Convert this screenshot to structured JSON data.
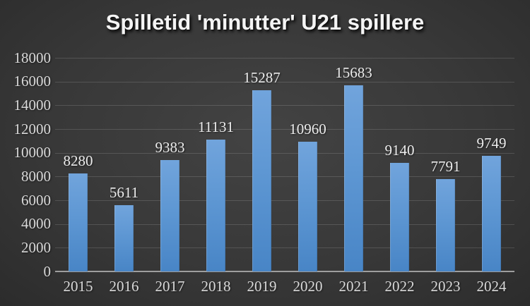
{
  "slide": {
    "background": {
      "center": "#434343",
      "edge": "#181818"
    }
  },
  "chart_data": {
    "type": "bar",
    "title": "Spilletid 'minutter' U21 spillere",
    "categories": [
      "2015",
      "2016",
      "2017",
      "2018",
      "2019",
      "2020",
      "2021",
      "2022",
      "2023",
      "2024"
    ],
    "values": [
      8280,
      5611,
      9383,
      11131,
      15287,
      10960,
      15683,
      9140,
      7791,
      9749
    ],
    "xlabel": "",
    "ylabel": "",
    "ylim": [
      0,
      18000
    ],
    "ytick_step": 2000,
    "ytick_labels": [
      "0",
      "2000",
      "4000",
      "6000",
      "8000",
      "10000",
      "12000",
      "14000",
      "16000",
      "18000"
    ],
    "grid": true,
    "legend": "none",
    "data_labels": true,
    "colors": {
      "bar_top": "#71a4dc",
      "bar_bottom": "#4885c6",
      "gridline": "rgba(255,255,255,0.14)",
      "axis_line": "#9e9e9e",
      "axis_text": "#d9d9d9",
      "data_label_text": "#ececec",
      "title_text": "#f4f4f4"
    }
  }
}
